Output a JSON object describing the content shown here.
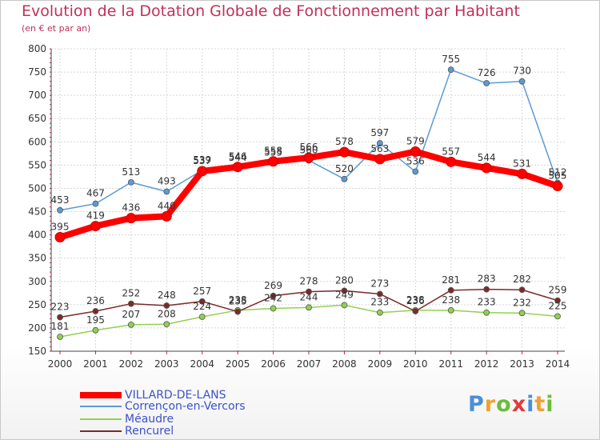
{
  "chart_data": {
    "type": "line",
    "title": "Evolution de la Dotation Globale de Fonctionnement par Habitant",
    "subtitle": "(en € et par an)",
    "xlabel": "",
    "ylabel": "",
    "ylim": [
      150,
      800
    ],
    "yticks": [
      150,
      200,
      250,
      300,
      350,
      400,
      450,
      500,
      550,
      600,
      650,
      700,
      750,
      800
    ],
    "x": [
      "2000",
      "2001",
      "2002",
      "2003",
      "2004",
      "2005",
      "2006",
      "2007",
      "2008",
      "2009",
      "2010",
      "2011",
      "2012",
      "2013",
      "2014"
    ],
    "grid": true,
    "legend_position": "bottom-left",
    "series": [
      {
        "name": "Corrençon-en-Vercors",
        "color": "#5b9bd5",
        "values": [
          453,
          467,
          513,
          493,
          539,
          544,
          555,
          560,
          520,
          597,
          536,
          755,
          726,
          730,
          512
        ]
      },
      {
        "name": "Méaudre",
        "color": "#92d050",
        "values": [
          181,
          195,
          207,
          208,
          224,
          238,
          242,
          244,
          249,
          233,
          238,
          238,
          233,
          232,
          225
        ]
      },
      {
        "name": "Rencurel",
        "color": "#7b2a2a",
        "values": [
          223,
          236,
          252,
          248,
          257,
          235,
          269,
          278,
          280,
          273,
          236,
          281,
          283,
          282,
          259
        ]
      },
      {
        "name": "VILLARD-DE-LANS",
        "color": "#ff0000",
        "values": [
          395,
          419,
          436,
          440,
          537,
          546,
          558,
          566,
          578,
          563,
          579,
          557,
          544,
          531,
          505
        ]
      }
    ]
  },
  "legend": [
    {
      "label": "VILLARD-DE-LANS",
      "color": "#ff0000"
    },
    {
      "label": "Corrençon-en-Vercors",
      "color": "#5b9bd5"
    },
    {
      "label": "Méaudre",
      "color": "#92d050"
    },
    {
      "label": "Rencurel",
      "color": "#7b2a2a"
    }
  ],
  "logo": {
    "text": "Proxiti",
    "colors": [
      "#4a8fd8",
      "#f0a030",
      "#6bbd3a",
      "#e03a3a",
      "#4a8fd8",
      "#f0a030",
      "#6bbd3a"
    ]
  }
}
